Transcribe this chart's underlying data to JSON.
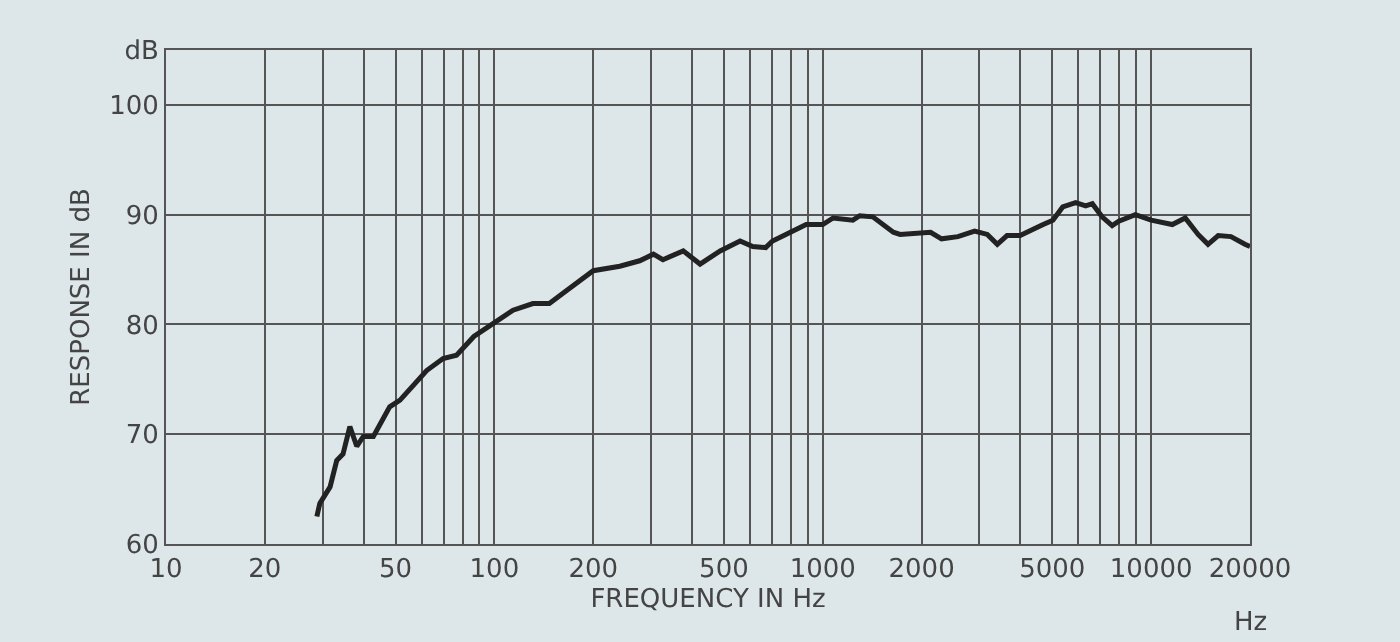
{
  "chart_data": {
    "type": "line",
    "xlabel": "FREQUENCY IN Hz",
    "ylabel": "RESPONSE IN dB",
    "annotations": [
      "Hz"
    ],
    "x": [
      28.8,
      29.4,
      31.6,
      33.1,
      34.6,
      36.3,
      38.1,
      39.9,
      42.8,
      48,
      51.6,
      62.2,
      69.8,
      76.7,
      86.6,
      99.3,
      114,
      131,
      147,
      166,
      200,
      241,
      277,
      305,
      326,
      376,
      423,
      487,
      560,
      612,
      670,
      703,
      772,
      890,
      1000,
      1075,
      1235,
      1296,
      1420,
      1640,
      1720,
      2130,
      2300,
      2580,
      2900,
      3170,
      3400,
      3640,
      3990,
      4690,
      5020,
      5380,
      5890,
      6320,
      6620,
      7090,
      7610,
      7970,
      8950,
      10000,
      11600,
      12700,
      13900,
      14900,
      16000,
      17500,
      19300,
      20000
    ],
    "series": [
      {
        "color": "#222222",
        "values": [
          62.5,
          63.7,
          65.2,
          67.6,
          68.2,
          70.7,
          68.9,
          69.8,
          69.8,
          72.5,
          73.1,
          75.8,
          76.9,
          77.2,
          78.9,
          80.1,
          81.3,
          81.9,
          81.9,
          83.1,
          84.9,
          85.3,
          85.8,
          86.4,
          85.9,
          86.7,
          85.5,
          86.7,
          87.6,
          87.1,
          87,
          87.6,
          88.2,
          89.1,
          89.1,
          89.7,
          89.5,
          89.9,
          89.8,
          88.4,
          88.2,
          88.4,
          87.8,
          88,
          88.5,
          88.2,
          87.3,
          88.1,
          88.1,
          89.1,
          89.5,
          90.7,
          91.1,
          90.8,
          91,
          89.8,
          89,
          89.4,
          90,
          89.5,
          89.1,
          89.7,
          88.2,
          87.3,
          88.1,
          88,
          87.3,
          87.1
        ]
      }
    ],
    "log": "x",
    "xlim": [
      10,
      20000
    ],
    "xticks": [
      10,
      20,
      {
        "value": 30,
        "label": null
      },
      {
        "value": 40,
        "label": null
      },
      50,
      {
        "value": 60,
        "label": null
      },
      {
        "value": 70,
        "label": null
      },
      {
        "value": 80,
        "label": null
      },
      {
        "value": 90,
        "label": null
      },
      100,
      200,
      {
        "value": 300,
        "label": null
      },
      {
        "value": 400,
        "label": null
      },
      500,
      {
        "value": 600,
        "label": null
      },
      {
        "value": 700,
        "label": null
      },
      {
        "value": 800,
        "label": null
      },
      {
        "value": 900,
        "label": null
      },
      1000,
      2000,
      {
        "value": 3000,
        "label": null
      },
      {
        "value": 4000,
        "label": null
      },
      5000,
      {
        "value": 6000,
        "label": null
      },
      {
        "value": 7000,
        "label": null
      },
      {
        "value": 8000,
        "label": null
      },
      {
        "value": 9000,
        "label": null
      },
      10000,
      20000
    ],
    "ylim": [
      60,
      105
    ],
    "yticks": [
      60,
      70,
      80,
      90,
      100,
      {
        "value": 105,
        "label": "dB"
      }
    ],
    "grid": true,
    "marker": "none",
    "line_style": "solid"
  }
}
